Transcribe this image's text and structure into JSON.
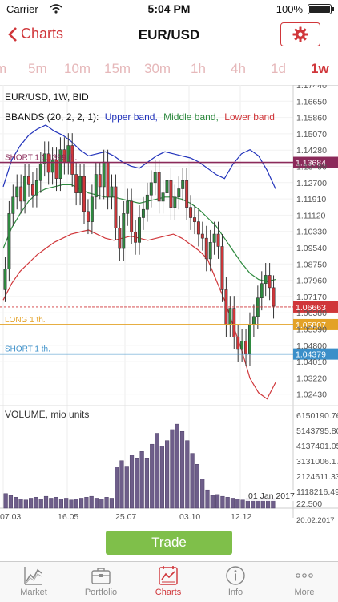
{
  "status_bar": {
    "carrier": "Carrier",
    "time": "5:04 PM",
    "battery": "100%",
    "battery_level": 1.0
  },
  "nav": {
    "back_label": "Charts",
    "title": "EUR/USD"
  },
  "tabs": [
    {
      "label": "m"
    },
    {
      "label": "5m"
    },
    {
      "label": "10m"
    },
    {
      "label": "15m"
    },
    {
      "label": "30m"
    },
    {
      "label": "1h"
    },
    {
      "label": "4h"
    },
    {
      "label": "1d"
    },
    {
      "label": "1w",
      "active": true
    }
  ],
  "chart": {
    "instrument": "EUR/USD, 1W, BID",
    "bbands_label": "BBANDS (20, 2, 2, 1):",
    "upper_label": "Upper band,",
    "middle_label": "Middle band,",
    "lower_label": "Lower band",
    "colors": {
      "up": "#2e8a3f",
      "down": "#d0363a",
      "upper": "#2233bb",
      "middle": "#2e8a3f",
      "lower": "#d0363a",
      "volume": "#6e5e8a"
    },
    "price_axis": [
      "1.17440",
      "1.16650",
      "1.15860",
      "1.15070",
      "1.14280",
      "1.13490",
      "1.12700",
      "1.11910",
      "1.11120",
      "1.10330",
      "1.09540",
      "1.08750",
      "1.07960",
      "1.07170",
      "1.06380",
      "1.05590",
      "1.04800",
      "1.04010",
      "1.03220",
      "1.02430"
    ],
    "price_range": [
      1.0203,
      1.1744
    ],
    "levels": [
      {
        "label": "SHORT 1 1.1399 th.",
        "value": 1.13684,
        "tag": "1.13684",
        "color": "#8b2a5a"
      },
      {
        "label": "LONG 1 th.",
        "value": 1.05807,
        "tag": "1.05807",
        "color": "#e3a227"
      },
      {
        "label": "SHORT 1 th.",
        "value": 1.04379,
        "tag": "1.04379",
        "color": "#3b8fc9"
      }
    ],
    "current_price": {
      "value": 1.06663,
      "tag": "1.06663",
      "color": "#d0363a"
    },
    "volume_title": "VOLUME, mio units",
    "volume_axis": [
      "6150190.76",
      "5143795.80",
      "4137401.05",
      "3131006.17",
      "2124611.33",
      "1118216.49",
      "22.500"
    ],
    "volume_max": 6150190.76,
    "date_labels": [
      "07.03",
      "16.05",
      "25.07",
      "03.10",
      "12.12"
    ],
    "last_date": "20.02.2017",
    "date_badge": "01 Jan 2017"
  },
  "trade_label": "Trade",
  "tabbar": [
    {
      "label": "Market",
      "icon": "market-icon"
    },
    {
      "label": "Portfolio",
      "icon": "portfolio-icon"
    },
    {
      "label": "Charts",
      "icon": "charts-icon",
      "active": true
    },
    {
      "label": "Info",
      "icon": "info-icon"
    },
    {
      "label": "More",
      "icon": "more-icon"
    }
  ]
}
